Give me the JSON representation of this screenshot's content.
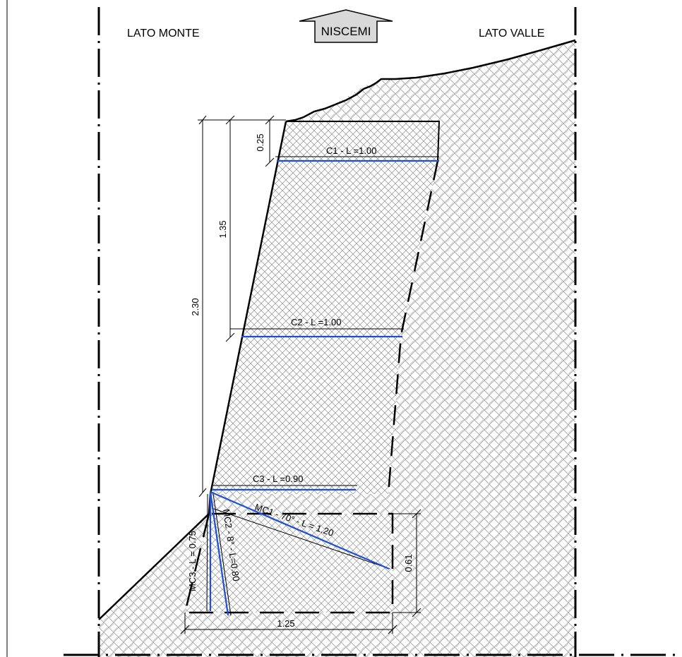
{
  "header": {
    "left_label": "LATO MONTE",
    "right_label": "LATO VALLE",
    "north_label": "NISCEMI"
  },
  "dimensions": {
    "top_cap": "0.25",
    "upper_height": "1.35",
    "total_height": "2.30",
    "footing_height": "0.61",
    "footing_width": "1.25"
  },
  "elements": {
    "c1": "C1 - L =1.00",
    "c2": "C2 - L =1.00",
    "c3": "C3 - L =0.90",
    "mc1": "MC1 - 70° - L = 1.20",
    "mc2": "MC2 - 8° - L=0.80",
    "mc3": "MC3 - L = 0.75"
  },
  "colors": {
    "line": "#000000",
    "anchor_blue": "#1f4fd8",
    "hatch": "#9a9a9a",
    "sign_fill": "#d9d9d9"
  }
}
